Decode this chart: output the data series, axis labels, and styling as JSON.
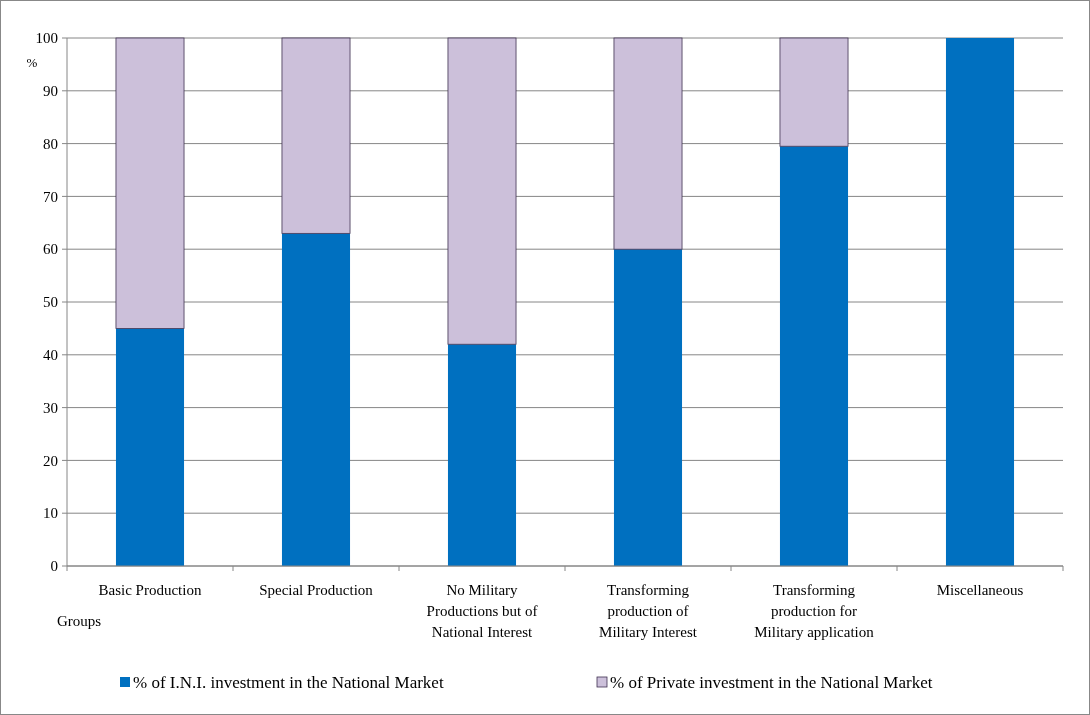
{
  "chart_data": {
    "type": "bar",
    "stacked": true,
    "xlabel": "Groups",
    "ylabel": "%",
    "categories": [
      "Basic Production",
      "Special Production",
      "No Military Productions but of National Interest",
      "Transforming production of Military Interest",
      "Transforming production for Military application",
      "Miscellaneous"
    ],
    "series": [
      {
        "name": "% of I.N.I. investment in the National Market",
        "color": "#0070c0",
        "values": [
          45,
          63,
          42,
          60,
          79.5,
          100
        ]
      },
      {
        "name": "% of Private investment in the National Market",
        "color": "#ccc0da",
        "values": [
          55,
          37,
          58,
          40,
          20.5,
          0
        ]
      }
    ],
    "ylim": [
      0,
      100
    ],
    "yticks": [
      0,
      10,
      20,
      30,
      40,
      50,
      60,
      70,
      80,
      90,
      100
    ],
    "grid": "y",
    "legend": "bottom"
  }
}
